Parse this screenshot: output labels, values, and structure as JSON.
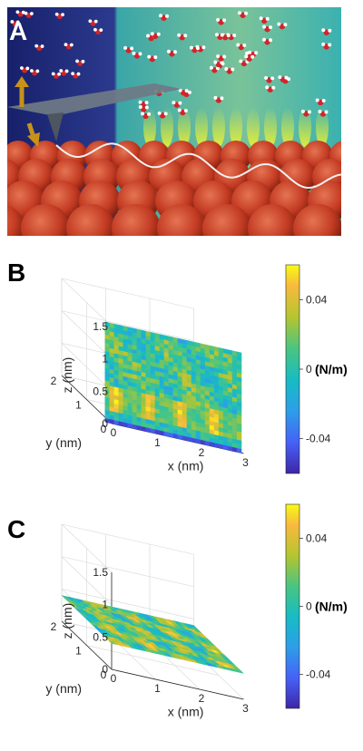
{
  "panels": [
    {
      "letter": "A",
      "description_colors": {
        "bg_left": "#1d2a7a",
        "bg_right": "#47b7a6",
        "surface": "#c4412a",
        "tip": "#6f7a86",
        "arrow": "#c8921a",
        "wave": "#f2f2f2"
      }
    },
    {
      "letter": "B",
      "chart_data": {
        "type": "heatmap",
        "surface_orientation": "vertical xz-plane at y = 0",
        "xlabel": "x (nm)",
        "ylabel": "y (nm)",
        "zlabel": "z (nm)",
        "xlim": [
          0,
          3
        ],
        "ylim": [
          0,
          2
        ],
        "zlim": [
          0,
          1.5
        ],
        "xticks": [
          "0",
          "1",
          "2",
          "3"
        ],
        "yticks": [
          "0",
          "1",
          "2"
        ],
        "zticks": [
          "0",
          "0.5",
          "1",
          "1.5"
        ],
        "colorbar": {
          "ticks": [
            "0.04",
            "0",
            "-0.04"
          ],
          "unit": "(N/m)",
          "range": [
            -0.06,
            0.06
          ]
        },
        "grid": true
      }
    },
    {
      "letter": "C",
      "chart_data": {
        "type": "heatmap",
        "surface_orientation": "horizontal xy-plane at z = 0.4",
        "xlabel": "x (nm)",
        "ylabel": "y (nm)",
        "zlabel": "z (nm)",
        "xlim": [
          0,
          3
        ],
        "ylim": [
          0,
          2
        ],
        "zlim": [
          0,
          1.5
        ],
        "xticks": [
          "0",
          "1",
          "2",
          "3"
        ],
        "yticks": [
          "0",
          "1",
          "2"
        ],
        "zticks": [
          "0",
          "0.5",
          "1",
          "1.5"
        ],
        "colorbar": {
          "ticks": [
            "0.04",
            "0",
            "-0.04"
          ],
          "unit": "(N/m)",
          "range": [
            -0.06,
            0.06
          ]
        },
        "grid": true
      }
    }
  ]
}
